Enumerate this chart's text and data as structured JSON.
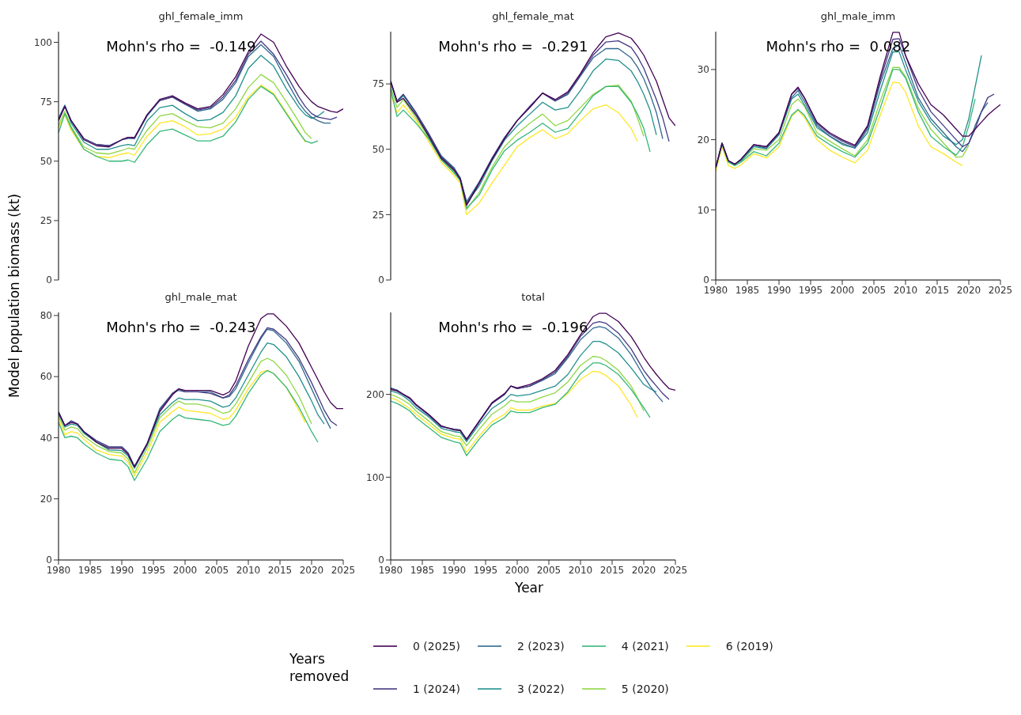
{
  "chart_data": [
    {
      "type": "line",
      "title": "ghl_female_imm",
      "annotations": [
        "Mohn's rho =  -0.149"
      ],
      "ylabel": "Model population biomass (kt)",
      "legend_title": "Years removed",
      "legend": "bottom",
      "tick_labels": "y",
      "xlim": [
        1980,
        2025
      ],
      "ylim": [
        0,
        104.5
      ],
      "yticks": [
        0,
        25,
        50,
        75,
        100
      ],
      "x": [
        1980,
        1981,
        1982,
        1984,
        1986,
        1988,
        1990,
        1991,
        1992,
        1994,
        1996,
        1998,
        2000,
        2002,
        2004,
        2006,
        2008,
        2010,
        2012,
        2014,
        2016,
        2018,
        2019,
        2020,
        2021,
        2022,
        2023,
        2024,
        2025
      ],
      "series": [
        {
          "name": "0 (2025)",
          "color": "#440154",
          "values": [
            67,
            73,
            67,
            59,
            56.5,
            56,
            59,
            60,
            60,
            69.5,
            76,
            77.5,
            74.5,
            72,
            73,
            78,
            85.5,
            96,
            103.5,
            100,
            90,
            81.5,
            78,
            75,
            73,
            72,
            71,
            70.5,
            72
          ]
        },
        {
          "name": "1 (2024)",
          "color": "#443983",
          "values": [
            67.5,
            73,
            67,
            59.5,
            57,
            56.5,
            59,
            60,
            59.5,
            69.5,
            75.5,
            77,
            74,
            71.5,
            72.5,
            77,
            84,
            95,
            100.5,
            95,
            86.5,
            77,
            73,
            70,
            68.5,
            68,
            67.5,
            68.5,
            null
          ]
        },
        {
          "name": "2 (2023)",
          "color": "#31688e",
          "values": [
            68,
            73.5,
            67,
            59.5,
            57,
            56.5,
            59,
            59.5,
            59.5,
            69,
            75.5,
            77,
            74,
            71,
            72,
            76,
            83,
            94,
            99,
            94,
            84,
            74.5,
            71,
            68.5,
            67,
            66,
            66,
            null,
            null
          ]
        },
        {
          "name": "3 (2022)",
          "color": "#21908c",
          "values": [
            68,
            73.5,
            66,
            58,
            55,
            55,
            56.5,
            57,
            56.5,
            67,
            72.5,
            73.5,
            70,
            67,
            67.5,
            70.5,
            77.5,
            89,
            94.5,
            90,
            80.5,
            72.5,
            69.5,
            68,
            69,
            71,
            null,
            null,
            null
          ]
        },
        {
          "name": "4 (2021)",
          "color": "#35b779",
          "values": [
            62,
            70,
            64,
            55,
            52,
            50,
            50,
            50.5,
            49.5,
            57,
            62.5,
            63.5,
            61,
            58.5,
            58.5,
            60.5,
            66.5,
            76,
            81.5,
            78,
            70,
            62,
            58.5,
            57.5,
            58.5,
            null,
            null,
            null,
            null
          ]
        },
        {
          "name": "5 (2020)",
          "color": "#8fd744",
          "values": [
            65,
            71,
            64.5,
            56,
            53.5,
            53,
            54.5,
            55.5,
            55,
            63,
            69,
            70,
            67,
            64.5,
            64,
            66,
            72,
            81,
            86.5,
            83,
            75,
            66.5,
            62,
            59.5,
            null,
            null,
            null,
            null,
            null
          ]
        },
        {
          "name": "6 (2019)",
          "color": "#fde725",
          "values": [
            64,
            69.5,
            63,
            55,
            52,
            51.5,
            53,
            53.5,
            52.5,
            60.5,
            66,
            67,
            64.5,
            61,
            61.5,
            63.5,
            68.5,
            77,
            82,
            78.5,
            70.5,
            62.5,
            58,
            null,
            null,
            null,
            null,
            null,
            null
          ]
        }
      ]
    },
    {
      "type": "line",
      "title": "ghl_female_mat",
      "annotations": [
        "Mohn's rho =  -0.291"
      ],
      "tick_labels": "y",
      "xlim": [
        1980,
        2025
      ],
      "ylim": [
        0,
        95
      ],
      "yticks": [
        0,
        25,
        50,
        75
      ],
      "x": [
        1980,
        1981,
        1982,
        1984,
        1986,
        1988,
        1990,
        1991,
        1992,
        1994,
        1996,
        1998,
        2000,
        2002,
        2004,
        2006,
        2008,
        2010,
        2012,
        2014,
        2016,
        2018,
        2019,
        2020,
        2021,
        2022,
        2023,
        2024,
        2025
      ],
      "series": [
        {
          "color": "#440154",
          "values": [
            76,
            68,
            69.5,
            63,
            55,
            46.5,
            42,
            38.5,
            28.5,
            37,
            46,
            54,
            61,
            66,
            71.5,
            69,
            72,
            79,
            87,
            93,
            94.5,
            92.5,
            89.5,
            86,
            81,
            76,
            69,
            62,
            59
          ]
        },
        {
          "color": "#443983",
          "values": [
            76,
            68.5,
            71,
            64,
            56,
            47,
            42.5,
            39,
            29,
            37.5,
            46.5,
            54.5,
            61,
            66.5,
            71.5,
            68.5,
            71.5,
            78.5,
            86,
            91,
            91.5,
            89,
            85.5,
            81,
            75,
            69,
            62,
            53,
            null
          ]
        },
        {
          "color": "#31688e",
          "values": [
            76,
            68.5,
            71,
            64,
            56,
            47.5,
            43,
            39,
            30,
            37.5,
            46.5,
            54.5,
            61,
            66,
            71.5,
            68.5,
            71,
            78,
            85,
            88.5,
            88.5,
            85,
            81.5,
            77,
            71,
            64,
            54,
            null,
            null
          ]
        },
        {
          "color": "#21908c",
          "values": [
            75.5,
            68,
            70.5,
            63.5,
            55.5,
            47,
            42.5,
            38.5,
            29.5,
            36,
            45.5,
            53.5,
            59,
            63.5,
            68,
            65,
            66,
            72.5,
            80,
            84.5,
            84,
            80,
            76,
            71,
            65,
            55.5,
            null,
            null,
            null
          ]
        },
        {
          "color": "#35b779",
          "values": [
            73,
            62.5,
            65,
            60,
            54,
            46,
            41,
            38,
            27.5,
            32.5,
            42,
            49.5,
            53.5,
            56.5,
            60,
            56.5,
            58,
            64,
            70.5,
            74,
            74,
            68,
            63.5,
            58,
            49,
            null,
            null,
            null,
            null
          ]
        },
        {
          "color": "#8fd744",
          "values": [
            74,
            66,
            69,
            62,
            54.5,
            46,
            41.5,
            38,
            27,
            33.5,
            43,
            51,
            56,
            60,
            63.5,
            59,
            61,
            66,
            71,
            74,
            74.5,
            68.5,
            62,
            55,
            null,
            null,
            null,
            null,
            null
          ]
        },
        {
          "color": "#fde725",
          "values": [
            71,
            64,
            67,
            61,
            53,
            45,
            40,
            37,
            25,
            29.5,
            37,
            44,
            51,
            54.5,
            57.5,
            54,
            56,
            61,
            65.5,
            67,
            64,
            58,
            53,
            null,
            null,
            null,
            null,
            null,
            null
          ]
        }
      ]
    },
    {
      "type": "line",
      "title": "ghl_male_imm",
      "annotations": [
        "Mohn's rho =  0.082"
      ],
      "xlim": [
        1980,
        2025
      ],
      "xticks": [
        1980,
        1985,
        1990,
        1995,
        2000,
        2005,
        2010,
        2015,
        2020,
        2025
      ],
      "ylim": [
        0,
        35.4
      ],
      "yticks": [
        0,
        10,
        20,
        30
      ],
      "x": [
        1980,
        1981,
        1982,
        1983,
        1984,
        1986,
        1988,
        1990,
        1992,
        1993,
        1994,
        1996,
        1998,
        2000,
        2002,
        2004,
        2006,
        2008,
        2009,
        2010,
        2012,
        2014,
        2016,
        2018,
        2019,
        2020,
        2021,
        2022,
        2023,
        2024,
        2025
      ],
      "series": [
        {
          "color": "#440154",
          "values": [
            16,
            19.5,
            17,
            16.5,
            17.2,
            19.3,
            19,
            21,
            26.5,
            27.5,
            26,
            22.5,
            21,
            20,
            19.2,
            22,
            29,
            35.3,
            35.3,
            32,
            28,
            25,
            23.5,
            21.5,
            20.5,
            20.5,
            21.5,
            22.5,
            23.5,
            24.3,
            25
          ]
        },
        {
          "color": "#443983",
          "values": [
            16,
            19.5,
            17,
            16.5,
            17.2,
            19.3,
            19,
            21,
            26.5,
            27.3,
            26,
            22.3,
            20.8,
            19.8,
            19,
            21.8,
            28.5,
            34.3,
            34.4,
            32,
            27.2,
            24,
            22,
            20,
            19,
            19.5,
            21.5,
            24,
            26,
            26.5,
            null
          ]
        },
        {
          "color": "#31688e",
          "values": [
            16,
            19.5,
            17,
            16.5,
            17.2,
            19.2,
            18.8,
            20.8,
            26,
            27,
            25.5,
            22,
            20.5,
            19.5,
            18.8,
            21.5,
            28,
            33,
            33.5,
            31,
            26,
            23,
            21,
            19,
            18.3,
            19.5,
            22,
            24,
            25.3,
            null,
            null
          ]
        },
        {
          "color": "#21908c",
          "values": [
            16,
            19.5,
            17,
            16.5,
            17,
            19,
            18.7,
            20.7,
            25.8,
            26.5,
            25,
            21.7,
            20.5,
            19.3,
            18.8,
            21,
            27,
            32.5,
            32.5,
            30,
            25.5,
            22.5,
            20.5,
            19.3,
            20,
            23,
            27.5,
            32,
            null,
            null,
            null
          ]
        },
        {
          "color": "#35b779",
          "values": [
            16,
            19.3,
            16.8,
            16.3,
            16.8,
            18.3,
            17.7,
            19.5,
            23.5,
            24.3,
            23.5,
            20.5,
            19.3,
            18.3,
            17.5,
            19.5,
            24.5,
            30,
            30,
            28.8,
            24,
            20.5,
            19,
            17.8,
            19,
            22,
            25.8,
            null,
            null,
            null,
            null
          ]
        },
        {
          "color": "#8fd744",
          "values": [
            16,
            19.3,
            16.8,
            16.4,
            17,
            18.7,
            18.5,
            20,
            25,
            25.8,
            24.8,
            21,
            19.8,
            18.7,
            17.7,
            20,
            25.5,
            30.3,
            30.3,
            29,
            24.5,
            21.5,
            19.5,
            17.5,
            17.6,
            19.2,
            null,
            null,
            null,
            null,
            null
          ]
        },
        {
          "color": "#fde725",
          "values": [
            15.5,
            19,
            16.3,
            15.9,
            16.4,
            18,
            17.4,
            19,
            23.3,
            24.2,
            23.2,
            20,
            18.5,
            17.5,
            16.7,
            18.5,
            23.5,
            28.2,
            28.1,
            26.8,
            22,
            19,
            18,
            16.8,
            16.3,
            null,
            null,
            null,
            null,
            null,
            null
          ]
        }
      ]
    },
    {
      "type": "line",
      "title": "ghl_male_mat",
      "annotations": [
        "Mohn's rho =  -0.243"
      ],
      "xlim": [
        1980,
        2025
      ],
      "xticks": [
        1980,
        1985,
        1990,
        1995,
        2000,
        2005,
        2010,
        2015,
        2020,
        2025
      ],
      "ylim": [
        0,
        81
      ],
      "yticks": [
        0,
        20,
        40,
        60,
        80
      ],
      "x": [
        1980,
        1981,
        1982,
        1983,
        1984,
        1986,
        1988,
        1990,
        1991,
        1992,
        1994,
        1996,
        1998,
        1999,
        2000,
        2002,
        2004,
        2006,
        2007,
        2008,
        2010,
        2012,
        2013,
        2014,
        2016,
        2018,
        2019,
        2020,
        2021,
        2022,
        2023,
        2024,
        2025
      ],
      "series": [
        {
          "color": "#440154",
          "values": [
            48,
            44,
            45,
            44.5,
            42,
            38.5,
            36.5,
            36.5,
            34.5,
            30.5,
            38,
            48.5,
            54,
            56,
            55.5,
            55.5,
            55.5,
            54,
            55,
            58.5,
            70,
            79,
            80.5,
            80.5,
            76.5,
            71,
            67,
            63,
            59,
            55,
            51.5,
            49.5,
            49.5
          ]
        },
        {
          "color": "#443983",
          "values": [
            48.5,
            44,
            45.5,
            44.5,
            42,
            39,
            37,
            37,
            35,
            30.5,
            38,
            49,
            54.5,
            56,
            55,
            55,
            54.5,
            53,
            54,
            57,
            65.5,
            73,
            76,
            75.5,
            72,
            66,
            62,
            58,
            53.5,
            49,
            45.5,
            44,
            null
          ]
        },
        {
          "color": "#31688e",
          "values": [
            48.5,
            44,
            45.5,
            44.5,
            42,
            39,
            37,
            37,
            35,
            30.5,
            38,
            49.5,
            54.5,
            55.5,
            55,
            55,
            55,
            53,
            53.5,
            56,
            64.5,
            72.5,
            75.5,
            75,
            71,
            65,
            60.5,
            56,
            51.5,
            47,
            43,
            null,
            null
          ]
        },
        {
          "color": "#21908c",
          "values": [
            48,
            43.5,
            44.5,
            44,
            41.5,
            38.5,
            36,
            35.8,
            34,
            30,
            37.5,
            47.5,
            51.5,
            53,
            52.5,
            52.5,
            52,
            50,
            50.5,
            53,
            60.5,
            68,
            71,
            70.5,
            66.5,
            60,
            56,
            52,
            47.5,
            44.5,
            null,
            null,
            null
          ]
        },
        {
          "color": "#35b779",
          "values": [
            45,
            40,
            40.5,
            40,
            38,
            35,
            33,
            32.5,
            30.5,
            26,
            33,
            42,
            46,
            47.5,
            46.5,
            46,
            45.5,
            44,
            44.5,
            47,
            54.5,
            60.5,
            62,
            61,
            56.5,
            50,
            46,
            42,
            38.5,
            null,
            null,
            null,
            null
          ]
        },
        {
          "color": "#8fd744",
          "values": [
            47,
            42.5,
            43.5,
            43,
            40.5,
            37.5,
            35.5,
            35,
            33,
            28.5,
            36.5,
            46.5,
            50.5,
            52,
            51,
            51,
            50,
            48,
            48.5,
            51,
            58,
            65,
            66,
            65,
            60.5,
            53.5,
            49,
            44.5,
            null,
            null,
            null,
            null,
            null
          ]
        },
        {
          "color": "#fde725",
          "values": [
            46,
            41,
            42,
            41.5,
            39.5,
            36,
            34.5,
            34,
            32,
            27.5,
            35,
            45,
            48.5,
            50,
            49,
            48.5,
            48,
            46,
            46.5,
            49,
            56,
            61.5,
            62,
            61,
            56.5,
            49,
            45,
            null,
            null,
            null,
            null,
            null,
            null
          ]
        }
      ]
    },
    {
      "type": "line",
      "title": "total",
      "annotations": [
        "Mohn's rho =  -0.196"
      ],
      "xlabel": "Year",
      "xlim": [
        1980,
        2025
      ],
      "xticks": [
        1980,
        1985,
        1990,
        1995,
        2000,
        2005,
        2010,
        2015,
        2020,
        2025
      ],
      "ylim": [
        0,
        299
      ],
      "yticks": [
        0,
        100,
        200
      ],
      "x": [
        1980,
        1981,
        1982,
        1983,
        1984,
        1986,
        1988,
        1990,
        1991,
        1992,
        1994,
        1996,
        1998,
        1999,
        2000,
        2002,
        2004,
        2006,
        2008,
        2010,
        2012,
        2013,
        2014,
        2016,
        2018,
        2019,
        2020,
        2021,
        2022,
        2023,
        2024,
        2025
      ],
      "series": [
        {
          "color": "#440154",
          "values": [
            206,
            204,
            200,
            196,
            188,
            176,
            162,
            157,
            156,
            146,
            168,
            190,
            201,
            210,
            208,
            212,
            219,
            229,
            248,
            272,
            294,
            298,
            298,
            288,
            270,
            258,
            245,
            234,
            224,
            215,
            207,
            205
          ]
        },
        {
          "color": "#443983",
          "values": [
            207,
            205,
            200,
            195,
            187,
            175,
            161,
            158,
            157,
            145,
            167,
            189,
            200,
            210,
            207,
            210,
            218,
            227,
            246,
            270,
            286,
            288,
            286,
            274,
            255,
            242,
            229,
            219,
            210,
            201,
            194,
            null
          ]
        },
        {
          "color": "#31688e",
          "values": [
            208,
            205,
            200,
            195,
            187,
            175,
            161,
            158,
            157,
            145,
            167,
            189,
            200,
            210,
            207,
            210,
            217,
            225,
            244,
            266,
            280,
            282,
            280,
            268,
            248,
            235,
            222,
            210,
            200,
            191,
            null,
            null
          ]
        },
        {
          "color": "#21908c",
          "values": [
            204,
            202,
            198,
            192,
            184,
            173,
            159,
            155,
            154,
            143,
            164,
            183,
            193,
            200,
            198,
            200,
            205,
            210,
            224,
            247,
            264,
            264,
            261,
            250,
            232,
            222,
            212,
            207,
            203,
            null,
            null,
            null
          ]
        },
        {
          "color": "#35b779",
          "values": [
            192,
            189,
            185,
            180,
            172,
            160,
            148,
            143,
            141,
            126,
            146,
            163,
            172,
            180,
            178,
            178,
            184,
            188,
            203,
            225,
            238,
            238,
            235,
            224,
            206,
            195,
            184,
            172,
            null,
            null,
            null,
            null
          ]
        },
        {
          "color": "#8fd744",
          "values": [
            200,
            197,
            193,
            188,
            180,
            168,
            155,
            150,
            149,
            138,
            158,
            176,
            186,
            193,
            191,
            191,
            197,
            202,
            215,
            235,
            246,
            245,
            241,
            229,
            210,
            196,
            180,
            null,
            null,
            null,
            null,
            null
          ]
        },
        {
          "color": "#fde725",
          "values": [
            196,
            193,
            188,
            183,
            176,
            164,
            152,
            147,
            146,
            130,
            150,
            167,
            176,
            184,
            181,
            181,
            186,
            189,
            201,
            218,
            228,
            227,
            223,
            210,
            187,
            172,
            null,
            null,
            null,
            null,
            null,
            null
          ]
        }
      ]
    }
  ]
}
